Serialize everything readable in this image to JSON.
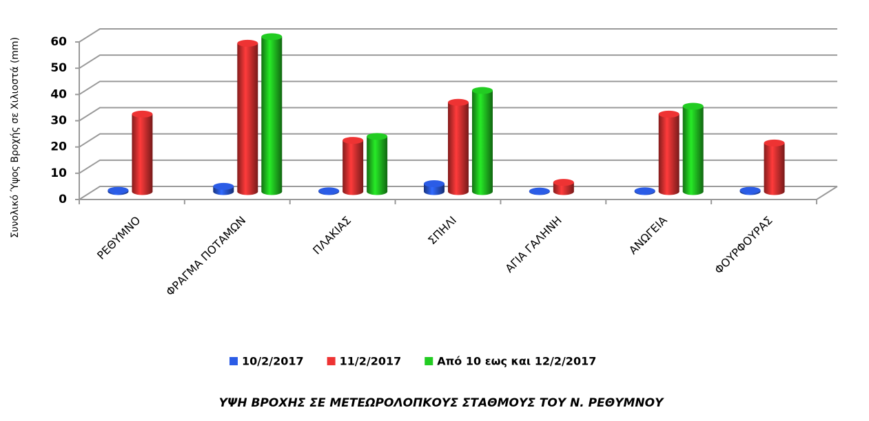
{
  "chart_data": {
    "type": "bar3d",
    "title": "ΥΨΗ ΒΡΟΧΗΣ ΣΕ ΜΕΤΕΩΡΟΛΟΠΚΟΥΣ ΣΤΑΘΜΟΥΣ ΤΟΥ Ν. ΡΕΘΥΜΝΟΥ",
    "y_label": "Συνολικό Ύψος Βροχής σε Χιλιοστά (mm)",
    "categories": [
      "ΡΕΘΥΜΝΟ",
      "ΦΡΑΓΜΑ ΠΟΤΑΜΩΝ",
      "ΠΛΑΚΙΑΣ",
      "ΣΠΗΛΙ",
      "ΑΓΙΑ ΓΑΛΗΝΗ",
      "ΑΝΩΓΕΙΑ",
      "ΦΟΥΡΦΟΥΡΑΣ"
    ],
    "series": [
      {
        "name": "10/2/2017",
        "color": "#2b5ce6",
        "values": [
          0.5,
          2,
          0.3,
          3,
          0.2,
          0.3,
          0.5
        ]
      },
      {
        "name": "11/2/2017",
        "color": "#ee3333",
        "values": [
          29.5,
          56.5,
          19.5,
          34,
          3.5,
          29.5,
          18.5
        ]
      },
      {
        "name": "Από 10 εως και 12/2/2017",
        "color": "#22cc22",
        "values": [
          null,
          59,
          21,
          38.5,
          null,
          32.5,
          null
        ]
      }
    ],
    "ylim": [
      0,
      60
    ],
    "yticks": [
      0,
      10,
      20,
      30,
      40,
      50,
      60
    ],
    "grid": true,
    "legend": "bottom"
  }
}
